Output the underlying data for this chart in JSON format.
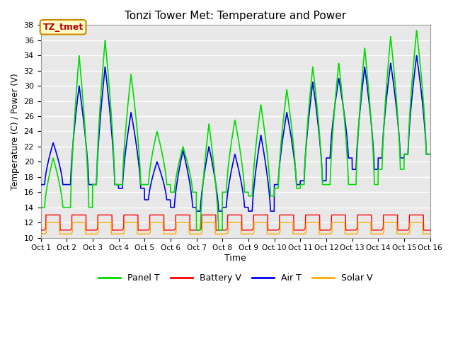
{
  "title": "Tonzi Tower Met: Temperature and Power",
  "xlabel": "Time",
  "ylabel": "Temperature (C) / Power (V)",
  "ylim": [
    10,
    38
  ],
  "xlim": [
    0,
    15
  ],
  "xtick_labels": [
    "Oct 1",
    "Oct 2",
    "Oct 3",
    "Oct 4",
    "Oct 5",
    "Oct 6",
    "Oct 7",
    "Oct 8",
    "Oct 9",
    "Oct 10",
    "Oct 11",
    "Oct 12",
    "Oct 13",
    "Oct 14",
    "Oct 15",
    "Oct 16"
  ],
  "annotation_text": "TZ_tmet",
  "bg_color": "#e8e8e8",
  "panel_color": "#00dd00",
  "battery_color": "#ff0000",
  "air_color": "#0000ee",
  "solar_color": "#ffaa00",
  "legend_labels": [
    "Panel T",
    "Battery V",
    "Air T",
    "Solar V"
  ],
  "yticks": [
    10,
    12,
    14,
    16,
    18,
    20,
    22,
    24,
    26,
    28,
    30,
    32,
    34,
    36,
    38
  ],
  "panel_peaks": [
    20.5,
    34,
    36,
    31.5,
    24,
    22,
    25,
    25.5,
    27.5,
    29.5,
    32.5,
    33,
    35,
    36.5,
    37.3
  ],
  "panel_mins": [
    14,
    14,
    17,
    17,
    17,
    16,
    11,
    16,
    15.5,
    16.5,
    17,
    17,
    17,
    19,
    21
  ],
  "air_peaks": [
    22.5,
    30,
    32.5,
    26.5,
    20,
    21.5,
    22,
    21,
    23.5,
    26.5,
    30.5,
    31,
    32.5,
    33,
    34
  ],
  "air_mins": [
    17,
    17,
    17,
    16.5,
    15,
    14,
    13.5,
    14,
    13.5,
    17,
    17.5,
    20.5,
    19,
    20.5,
    21
  ],
  "batt_peak": 13.0,
  "batt_min": 11.0,
  "solar_peak": 12.0,
  "solar_min": 10.5
}
